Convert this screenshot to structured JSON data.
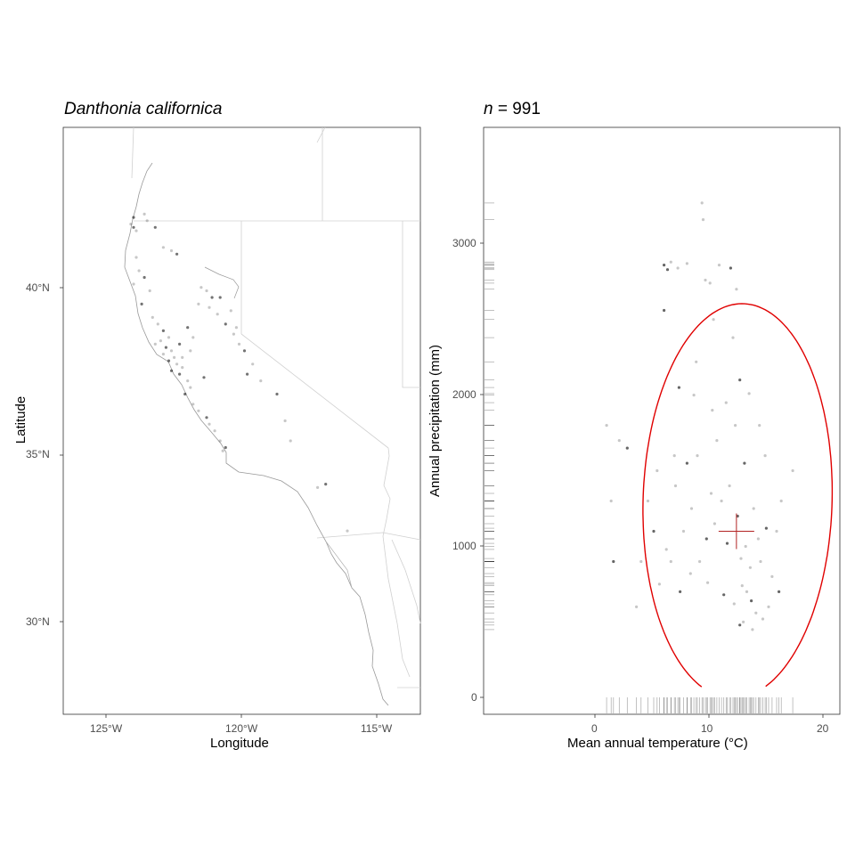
{
  "map_panel": {
    "title": "Danthonia californica",
    "xlabel": "Longitude",
    "ylabel": "Latitude",
    "x_ticks": [
      "125°W",
      "120°W",
      "115°W"
    ],
    "y_ticks": [
      "40°N",
      "35°N",
      "30°N"
    ]
  },
  "climate_panel": {
    "title_prefix": "n",
    "title_suffix": " = 991",
    "xlabel": "Mean annual temperature (°C)",
    "ylabel": "Annual precipitation (mm)",
    "x_ticks": [
      "0",
      "10",
      "20"
    ],
    "y_ticks": [
      "0",
      "1000",
      "2000",
      "3000"
    ]
  },
  "colors": {
    "points": "#000000",
    "ellipse": "#e00000",
    "centroid": "#b22222",
    "border": "#bfbfbf",
    "frame": "#333333"
  },
  "chart_data": [
    {
      "type": "scatter",
      "title": "Danthonia californica",
      "xlabel": "Longitude",
      "ylabel": "Latitude",
      "xlim": [
        -126.6,
        -113.4
      ],
      "ylim": [
        27.3,
        44.9
      ],
      "grid": false,
      "series": [
        {
          "points": [
            [
              -124.0,
              41.9
            ],
            [
              -124.1,
              42.0
            ],
            [
              -123.9,
              41.8
            ],
            [
              -124.0,
              42.2
            ],
            [
              -123.6,
              42.3
            ],
            [
              -123.5,
              42.1
            ],
            [
              -123.2,
              41.9
            ],
            [
              -122.9,
              41.3
            ],
            [
              -122.6,
              41.2
            ],
            [
              -122.4,
              41.1
            ],
            [
              -123.9,
              41.0
            ],
            [
              -123.8,
              40.6
            ],
            [
              -123.6,
              40.4
            ],
            [
              -124.0,
              40.2
            ],
            [
              -123.4,
              40.0
            ],
            [
              -123.7,
              39.6
            ],
            [
              -123.3,
              39.2
            ],
            [
              -123.1,
              39.0
            ],
            [
              -122.9,
              38.8
            ],
            [
              -122.7,
              38.6
            ],
            [
              -123.0,
              38.5
            ],
            [
              -122.8,
              38.3
            ],
            [
              -122.6,
              38.2
            ],
            [
              -122.5,
              38.0
            ],
            [
              -122.7,
              37.9
            ],
            [
              -122.4,
              37.8
            ],
            [
              -122.2,
              37.7
            ],
            [
              -122.3,
              37.5
            ],
            [
              -122.0,
              37.3
            ],
            [
              -121.9,
              37.1
            ],
            [
              -122.1,
              36.9
            ],
            [
              -121.8,
              36.6
            ],
            [
              -121.6,
              36.4
            ],
            [
              -121.3,
              36.2
            ],
            [
              -121.0,
              35.8
            ],
            [
              -120.8,
              35.5
            ],
            [
              -120.6,
              35.3
            ],
            [
              -120.7,
              35.2
            ],
            [
              -121.2,
              36.0
            ],
            [
              -122.3,
              38.4
            ],
            [
              -121.5,
              40.1
            ],
            [
              -121.3,
              40.0
            ],
            [
              -121.1,
              39.8
            ],
            [
              -121.2,
              39.5
            ],
            [
              -120.9,
              39.3
            ],
            [
              -120.6,
              39.0
            ],
            [
              -120.3,
              38.7
            ],
            [
              -120.1,
              38.4
            ],
            [
              -120.8,
              39.8
            ],
            [
              -121.6,
              39.6
            ],
            [
              -120.2,
              38.9
            ],
            [
              -119.9,
              38.2
            ],
            [
              -119.6,
              37.8
            ],
            [
              -119.3,
              37.3
            ],
            [
              -118.7,
              36.9
            ],
            [
              -118.4,
              36.1
            ],
            [
              -118.2,
              35.5
            ],
            [
              -116.9,
              34.2
            ],
            [
              -117.2,
              34.1
            ],
            [
              -116.1,
              32.8
            ],
            [
              -122.0,
              38.9
            ],
            [
              -121.8,
              38.6
            ],
            [
              -122.2,
              38.0
            ],
            [
              -121.4,
              37.4
            ],
            [
              -122.9,
              38.1
            ],
            [
              -123.2,
              38.4
            ],
            [
              -122.6,
              37.6
            ],
            [
              -121.9,
              38.2
            ],
            [
              -120.4,
              39.4
            ],
            [
              -119.8,
              37.5
            ]
          ]
        }
      ]
    },
    {
      "type": "scatter",
      "title": "n = 991",
      "xlabel": "Mean annual temperature (°C)",
      "ylabel": "Annual precipitation (mm)",
      "xlim": [
        -9.5,
        21.5
      ],
      "ylim": [
        -110,
        3770
      ],
      "grid": false,
      "centroid": {
        "x": 12.5,
        "y": 1100
      },
      "ellipse": "95% envelope, red",
      "series": [
        {
          "points": [
            [
              6.2,
              2860
            ],
            [
              6.8,
              2880
            ],
            [
              7.4,
              2840
            ],
            [
              8.2,
              2870
            ],
            [
              6.5,
              2830
            ],
            [
              9.8,
              2760
            ],
            [
              10.2,
              2740
            ],
            [
              11.0,
              2860
            ],
            [
              12.0,
              2840
            ],
            [
              12.5,
              2700
            ],
            [
              9.5,
              3270
            ],
            [
              9.6,
              3160
            ],
            [
              6.2,
              2560
            ],
            [
              10.5,
              2500
            ],
            [
              12.2,
              2380
            ],
            [
              9.0,
              2220
            ],
            [
              7.5,
              2050
            ],
            [
              8.8,
              2000
            ],
            [
              10.4,
              1900
            ],
            [
              11.6,
              1950
            ],
            [
              12.8,
              2100
            ],
            [
              13.6,
              2010
            ],
            [
              14.5,
              1800
            ],
            [
              15.0,
              1600
            ],
            [
              8.2,
              1550
            ],
            [
              7.2,
              1400
            ],
            [
              5.6,
              1500
            ],
            [
              4.8,
              1300
            ],
            [
              3.0,
              1650
            ],
            [
              2.3,
              1700
            ],
            [
              1.2,
              1800
            ],
            [
              1.6,
              1300
            ],
            [
              5.3,
              1100
            ],
            [
              6.8,
              900
            ],
            [
              8.5,
              820
            ],
            [
              10.0,
              760
            ],
            [
              11.4,
              680
            ],
            [
              12.3,
              620
            ],
            [
              13.0,
              740
            ],
            [
              13.4,
              700
            ],
            [
              13.8,
              640
            ],
            [
              14.2,
              560
            ],
            [
              14.8,
              520
            ],
            [
              13.1,
              500
            ],
            [
              12.8,
              480
            ],
            [
              13.9,
              450
            ],
            [
              15.3,
              600
            ],
            [
              14.6,
              900
            ],
            [
              15.1,
              1120
            ],
            [
              16.4,
              1300
            ],
            [
              16.0,
              1100
            ],
            [
              13.3,
              1000
            ],
            [
              12.6,
              1200
            ],
            [
              11.9,
              1400
            ],
            [
              11.2,
              1300
            ],
            [
              10.6,
              1150
            ],
            [
              9.9,
              1050
            ],
            [
              9.3,
              900
            ],
            [
              7.9,
              1100
            ],
            [
              6.4,
              980
            ],
            [
              7.6,
              700
            ],
            [
              5.8,
              750
            ],
            [
              3.8,
              600
            ],
            [
              4.2,
              900
            ],
            [
              1.8,
              900
            ],
            [
              9.1,
              1600
            ],
            [
              10.8,
              1700
            ],
            [
              12.4,
              1800
            ],
            [
              13.2,
              1550
            ],
            [
              14.0,
              1250
            ],
            [
              14.4,
              1050
            ],
            [
              15.6,
              800
            ],
            [
              16.2,
              700
            ],
            [
              17.4,
              1500
            ],
            [
              13.7,
              860
            ],
            [
              12.9,
              920
            ],
            [
              11.7,
              1020
            ],
            [
              10.3,
              1350
            ],
            [
              8.6,
              1250
            ],
            [
              7.1,
              1600
            ]
          ]
        }
      ]
    }
  ]
}
